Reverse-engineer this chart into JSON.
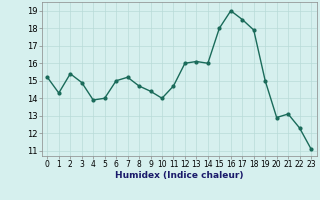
{
  "x": [
    0,
    1,
    2,
    3,
    4,
    5,
    6,
    7,
    8,
    9,
    10,
    11,
    12,
    13,
    14,
    15,
    16,
    17,
    18,
    19,
    20,
    21,
    22,
    23
  ],
  "y": [
    15.2,
    14.3,
    15.4,
    14.9,
    13.9,
    14.0,
    15.0,
    15.2,
    14.7,
    14.4,
    14.0,
    14.7,
    16.0,
    16.1,
    16.0,
    18.0,
    19.0,
    18.5,
    17.9,
    15.0,
    12.9,
    13.1,
    12.3,
    11.1
  ],
  "line_color": "#1a6b5a",
  "marker": "o",
  "marker_size": 2.0,
  "bg_color": "#d6f0ee",
  "grid_color": "#b8dbd8",
  "xlabel": "Humidex (Indice chaleur)",
  "xlim": [
    -0.5,
    23.5
  ],
  "ylim": [
    10.7,
    19.5
  ],
  "yticks": [
    11,
    12,
    13,
    14,
    15,
    16,
    17,
    18,
    19
  ],
  "xticks": [
    0,
    1,
    2,
    3,
    4,
    5,
    6,
    7,
    8,
    9,
    10,
    11,
    12,
    13,
    14,
    15,
    16,
    17,
    18,
    19,
    20,
    21,
    22,
    23
  ],
  "xtick_labels": [
    "0",
    "1",
    "2",
    "3",
    "4",
    "5",
    "6",
    "7",
    "8",
    "9",
    "10",
    "11",
    "12",
    "13",
    "14",
    "15",
    "16",
    "17",
    "18",
    "19",
    "20",
    "21",
    "22",
    "23"
  ],
  "linewidth": 1.0,
  "xlabel_color": "#1a1a6a",
  "xlabel_fontsize": 6.5,
  "tick_fontsize": 5.5,
  "ytick_fontsize": 6.0
}
